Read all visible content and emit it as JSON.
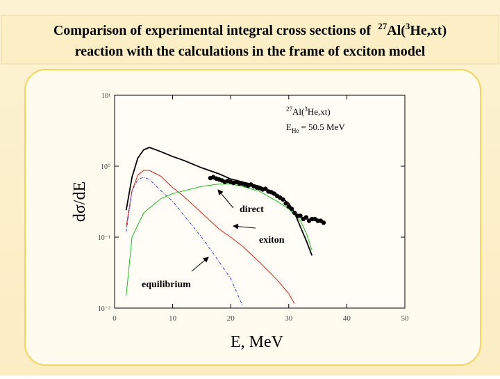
{
  "chart_data": {
    "type": "line",
    "title": [
      "Comparison of experimental integral cross sections of",
      "27",
      "Al(",
      "3",
      "He,xt)",
      "reaction with the calculations in the frame of exciton model"
    ],
    "reaction_label": [
      "27",
      "Al(",
      "3",
      "He,xt)"
    ],
    "energy_label": [
      "E",
      "He",
      "= 50.5 MeV"
    ],
    "annotations": [
      "direct",
      "exiton",
      "equilibrium"
    ],
    "xlabel": "E, MeV",
    "ylabel": "dσ/dE",
    "xlim": [
      0,
      50
    ],
    "xticks": [
      0,
      10,
      20,
      30,
      40,
      50
    ],
    "ylim": [
      0.01,
      10
    ],
    "yscale": "log",
    "yticks": [
      {
        "value": 0.01,
        "label": "10⁻²"
      },
      {
        "value": 0.1,
        "label": "10⁻¹"
      },
      {
        "value": 1,
        "label": "10⁰"
      },
      {
        "value": 10,
        "label": "10¹"
      }
    ],
    "series": [
      {
        "color": "#000000",
        "style": "solid",
        "x": [
          2,
          3,
          4,
          5,
          6,
          8,
          10,
          12,
          15,
          18,
          20,
          22,
          25,
          28,
          30,
          31,
          32,
          33,
          34
        ],
        "values": [
          0.24,
          0.7,
          1.3,
          1.7,
          1.84,
          1.6,
          1.37,
          1.2,
          0.95,
          0.78,
          0.66,
          0.6,
          0.52,
          0.4,
          0.3,
          0.22,
          0.14,
          0.09,
          0.055
        ]
      },
      {
        "color": "#e02020",
        "style": "solid",
        "x": [
          2,
          3,
          4,
          5,
          6,
          8,
          10,
          12,
          15,
          18,
          20,
          22,
          25,
          28,
          30,
          31
        ],
        "values": [
          0.14,
          0.45,
          0.75,
          0.87,
          0.87,
          0.72,
          0.5,
          0.37,
          0.22,
          0.13,
          0.1,
          0.075,
          0.044,
          0.025,
          0.016,
          0.0115
        ]
      },
      {
        "color": "#2040e0",
        "style": "dashed",
        "x": [
          2,
          3,
          4,
          5,
          6,
          8,
          10,
          12,
          15,
          18,
          20,
          22
        ],
        "values": [
          0.12,
          0.45,
          0.65,
          0.7,
          0.65,
          0.45,
          0.32,
          0.2,
          0.1,
          0.045,
          0.026,
          0.011
        ]
      },
      {
        "color": "#20c020",
        "style": "solid",
        "x": [
          2,
          3,
          5,
          8,
          10,
          15,
          18,
          20,
          22,
          25,
          28,
          30,
          32,
          33,
          34
        ],
        "values": [
          0.015,
          0.1,
          0.22,
          0.35,
          0.41,
          0.52,
          0.56,
          0.56,
          0.52,
          0.44,
          0.32,
          0.25,
          0.17,
          0.115,
          0.065
        ]
      },
      {
        "color": "#000000",
        "style": "markers",
        "x": [
          16.5,
          17,
          17.5,
          18,
          18.5,
          19,
          19.5,
          20,
          20.5,
          21,
          21.5,
          22,
          22.5,
          23,
          23.5,
          24,
          24.5,
          25,
          25.5,
          26,
          26.5,
          27,
          27.5,
          28,
          28.5,
          29,
          29.5,
          30,
          30.5,
          31,
          31.5,
          32,
          32.5,
          33,
          33.5,
          34,
          34.5,
          35,
          35.5,
          36
        ],
        "values": [
          0.68,
          0.7,
          0.67,
          0.65,
          0.63,
          0.6,
          0.62,
          0.6,
          0.58,
          0.6,
          0.57,
          0.57,
          0.55,
          0.53,
          0.55,
          0.52,
          0.5,
          0.49,
          0.47,
          0.48,
          0.44,
          0.43,
          0.41,
          0.38,
          0.36,
          0.34,
          0.3,
          0.27,
          0.25,
          0.22,
          0.2,
          0.2,
          0.18,
          0.19,
          0.17,
          0.18,
          0.18,
          0.17,
          0.17,
          0.16
        ]
      }
    ]
  }
}
